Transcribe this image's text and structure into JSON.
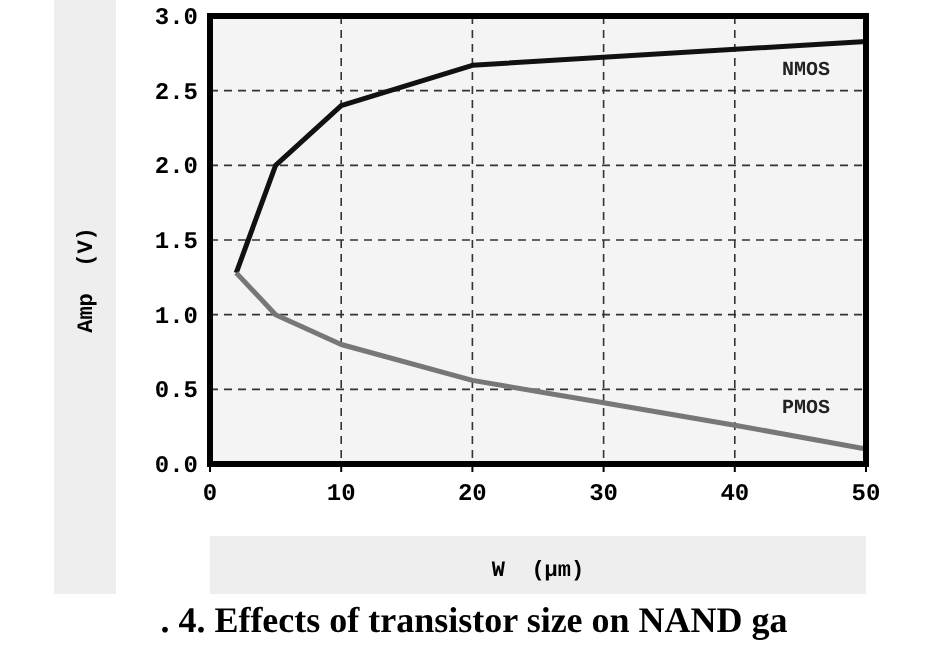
{
  "chart_data": {
    "type": "line",
    "title": ". 4. Effects of transistor size on NAND ga",
    "xlabel": "W  (µm)",
    "ylabel": "Amp  (V)",
    "xlim": [
      0,
      50
    ],
    "xticks": [
      0,
      10,
      20,
      30,
      40,
      50
    ],
    "ylim": [
      0,
      3
    ],
    "yticks": [
      {
        "value": 0,
        "label": "0.0"
      },
      {
        "value": 0.5,
        "label": "0.5"
      },
      {
        "value": 1,
        "label": "1.0"
      },
      {
        "value": 1.5,
        "label": "1.5"
      },
      {
        "value": 2,
        "label": "2.0"
      },
      {
        "value": 2.5,
        "label": "2.5"
      },
      {
        "value": 3,
        "label": "3.0"
      }
    ],
    "grid": true,
    "line_style": "solid",
    "marker": "none",
    "series": [
      {
        "name": "NMOS",
        "color": "#111111",
        "x": [
          2,
          5,
          10,
          20,
          50
        ],
        "values": [
          1.28,
          2.0,
          2.4,
          2.67,
          2.83
        ]
      },
      {
        "name": "PMOS",
        "color": "#777777",
        "x": [
          2,
          5,
          10,
          20,
          30,
          40,
          50
        ],
        "values": [
          1.28,
          1.0,
          0.8,
          0.56,
          0.41,
          0.26,
          0.1
        ]
      }
    ]
  }
}
